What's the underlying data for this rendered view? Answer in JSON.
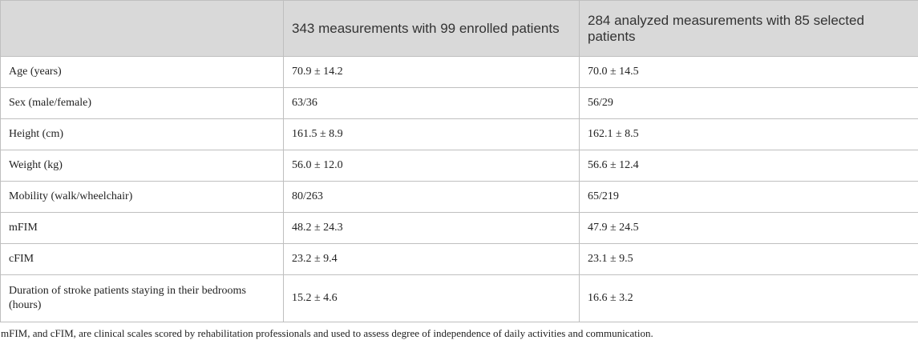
{
  "table": {
    "header": [
      "343 measurements with 99 enrolled patients",
      "284 analyzed measurements with 85 selected patients"
    ],
    "rows": [
      [
        "Age (years)",
        "70.9 ± 14.2",
        "70.0 ± 14.5"
      ],
      [
        "Sex (male/female)",
        "63/36",
        "56/29"
      ],
      [
        "Height (cm)",
        "161.5 ± 8.9",
        "162.1 ± 8.5"
      ],
      [
        "Weight (kg)",
        "56.0 ± 12.0",
        "56.6 ± 12.4"
      ],
      [
        "Mobility (walk/wheelchair)",
        "80/263",
        "65/219"
      ],
      [
        "mFIM",
        "48.2 ± 24.3",
        "47.9 ± 24.5"
      ],
      [
        "cFIM",
        "23.2 ± 9.4",
        "23.1 ± 9.5"
      ],
      [
        "Duration of stroke patients staying in their bedrooms (hours)",
        "15.2 ± 4.6",
        "16.6 ± 3.2"
      ]
    ],
    "footnote": "mFIM, and cFIM, are clinical scales scored by rehabilitation professionals and used to assess degree of independence of daily activities and communication."
  }
}
